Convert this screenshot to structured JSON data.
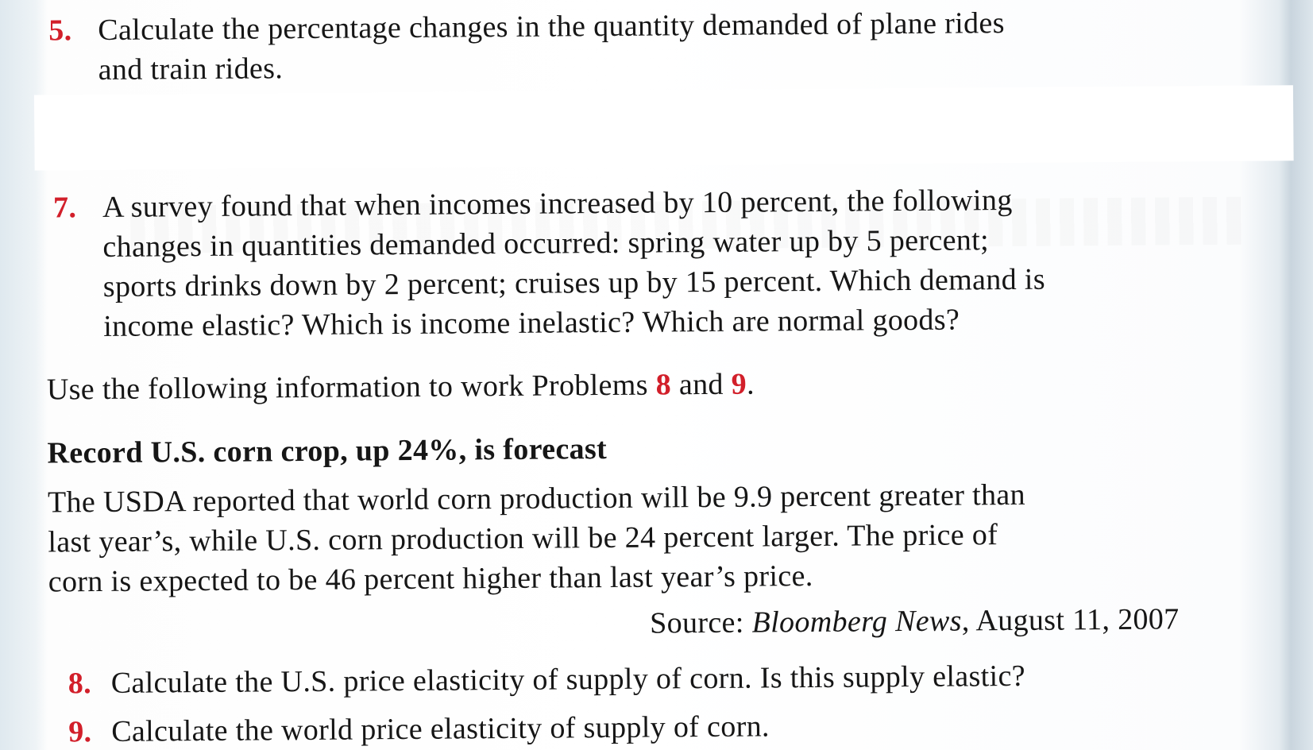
{
  "problems": [
    {
      "number": "5.",
      "lines": [
        "Calculate the percentage changes in the quantity demanded of plane rides",
        "and train rides."
      ]
    },
    {
      "number": "7.",
      "lines": [
        "A survey found that when incomes increased by 10 percent, the following",
        "changes in quantities demanded occurred: spring water up by 5 percent;",
        "sports drinks down by 2 percent; cruises up by 15 percent. Which demand is",
        "income elastic? Which is income inelastic? Which are normal goods?"
      ]
    },
    {
      "number": "8.",
      "lines": [
        "Calculate the U.S. price elasticity of supply of corn. Is this supply elastic?"
      ]
    },
    {
      "number": "9.",
      "lines": [
        "Calculate the world price elasticity of supply of corn."
      ]
    }
  ],
  "instruction": {
    "before": "Use the following information to work Problems ",
    "ref1": "8",
    "middle": " and ",
    "ref2": "9",
    "after": "."
  },
  "article": {
    "headline": "Record U.S. corn crop, up 24%, is forecast",
    "lines": [
      "The USDA reported that world corn production will be 9.9 percent greater than",
      "last year’s, while U.S. corn production will be 24 percent larger. The price of",
      "corn is expected to be 46 percent higher than last year’s price."
    ],
    "source_label": "Source: ",
    "source_publication": "Bloomberg News",
    "source_date": ", August 11, 2007"
  },
  "colors": {
    "problem_number": "#d21f2a",
    "text": "#161616",
    "margin": "#dfe9ef",
    "gutter": "#c9d5de"
  }
}
